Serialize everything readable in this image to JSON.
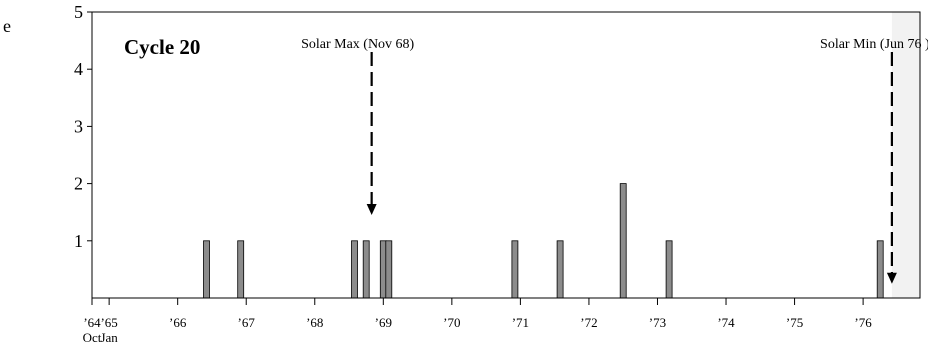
{
  "side_label": "e",
  "chart_data": {
    "type": "bar",
    "title": "Cycle 20",
    "xlabel": "",
    "ylabel": "",
    "ylim": [
      0,
      5
    ],
    "xlim": [
      1964.75,
      1976.83
    ],
    "grid": false,
    "y_ticks": [
      {
        "value": 1,
        "label": "1"
      },
      {
        "value": 2,
        "label": "2"
      },
      {
        "value": 3,
        "label": "3"
      },
      {
        "value": 4,
        "label": "4"
      },
      {
        "value": 5,
        "label": "5"
      }
    ],
    "x_ticks": [
      {
        "value": 1964.75,
        "label": "’64",
        "sublabel": "Oct"
      },
      {
        "value": 1965.0,
        "label": "’65",
        "sublabel": "Jan"
      },
      {
        "value": 1966.0,
        "label": "’66"
      },
      {
        "value": 1967.0,
        "label": "’67"
      },
      {
        "value": 1968.0,
        "label": "’68"
      },
      {
        "value": 1969.0,
        "label": "’69"
      },
      {
        "value": 1970.0,
        "label": "’70"
      },
      {
        "value": 1971.0,
        "label": "’71"
      },
      {
        "value": 1972.0,
        "label": "’72"
      },
      {
        "value": 1973.0,
        "label": "’73"
      },
      {
        "value": 1974.0,
        "label": "’74"
      },
      {
        "value": 1975.0,
        "label": "’75"
      },
      {
        "value": 1976.0,
        "label": "’76"
      }
    ],
    "bars": [
      {
        "x": 1966.42,
        "value": 1
      },
      {
        "x": 1966.92,
        "value": 1
      },
      {
        "x": 1968.58,
        "value": 1
      },
      {
        "x": 1968.75,
        "value": 1
      },
      {
        "x": 1969.0,
        "value": 1
      },
      {
        "x": 1969.08,
        "value": 1
      },
      {
        "x": 1970.92,
        "value": 1
      },
      {
        "x": 1971.58,
        "value": 1
      },
      {
        "x": 1972.5,
        "value": 2
      },
      {
        "x": 1973.17,
        "value": 1
      },
      {
        "x": 1976.25,
        "value": 1
      }
    ],
    "bar_color": "#8c8c8c",
    "shaded_region": {
      "from": 1976.42,
      "to": 1976.83,
      "color": "#f2f2f2"
    },
    "annotations": [
      {
        "text": "Solar Max (Nov 68)",
        "x": 1968.83,
        "arrow_from": 4.3,
        "arrow_to": 1.45
      },
      {
        "text": "Solar Min (Jun 76 )",
        "x": 1976.42,
        "arrow_from": 4.3,
        "arrow_to": 0.25
      }
    ]
  }
}
